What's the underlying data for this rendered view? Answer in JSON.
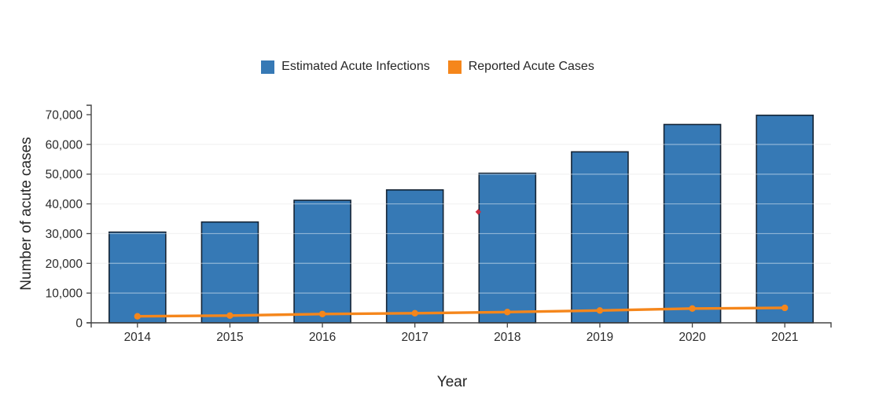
{
  "legend": {
    "items": [
      {
        "label": "Estimated Acute Infections",
        "color": "#3679b5",
        "shape": "square"
      },
      {
        "label": "Reported Acute Cases",
        "color": "#f5861b",
        "shape": "square"
      }
    ],
    "position": "top-center"
  },
  "chart_data": {
    "type": "bar+line",
    "title": "",
    "xlabel": "Year",
    "ylabel": "Number of acute cases",
    "categories": [
      "2014",
      "2015",
      "2016",
      "2017",
      "2018",
      "2019",
      "2020",
      "2021"
    ],
    "series": [
      {
        "name": "Estimated Acute Infections",
        "type": "bar",
        "color": "#3679b5",
        "edge_color": "#152435",
        "values": [
          30500,
          33900,
          41200,
          44700,
          50300,
          57500,
          66700,
          69800
        ]
      },
      {
        "name": "Reported Acute Cases",
        "type": "line",
        "color": "#f5861b",
        "marker": "circle",
        "values": [
          2194,
          2436,
          2967,
          3216,
          3621,
          4136,
          4798,
          5023
        ]
      }
    ],
    "annotations": [
      {
        "name": "stray-red-point",
        "shape": "diamond",
        "color": "#cf2e41",
        "x_category": "2018",
        "position": "left-edge-of-bar",
        "value": 37300
      }
    ],
    "ylim": [
      0,
      70000
    ],
    "y_ticks": [
      0,
      10000,
      20000,
      30000,
      40000,
      50000,
      60000,
      70000
    ],
    "y_tick_labels": [
      "0",
      "10,000",
      "20,000",
      "30,000",
      "40,000",
      "50,000",
      "60,000",
      "70,000"
    ],
    "grid": "horizontal",
    "grid_color": "#e9e9e9",
    "axis_color": "#444444",
    "legend_position": "top"
  }
}
